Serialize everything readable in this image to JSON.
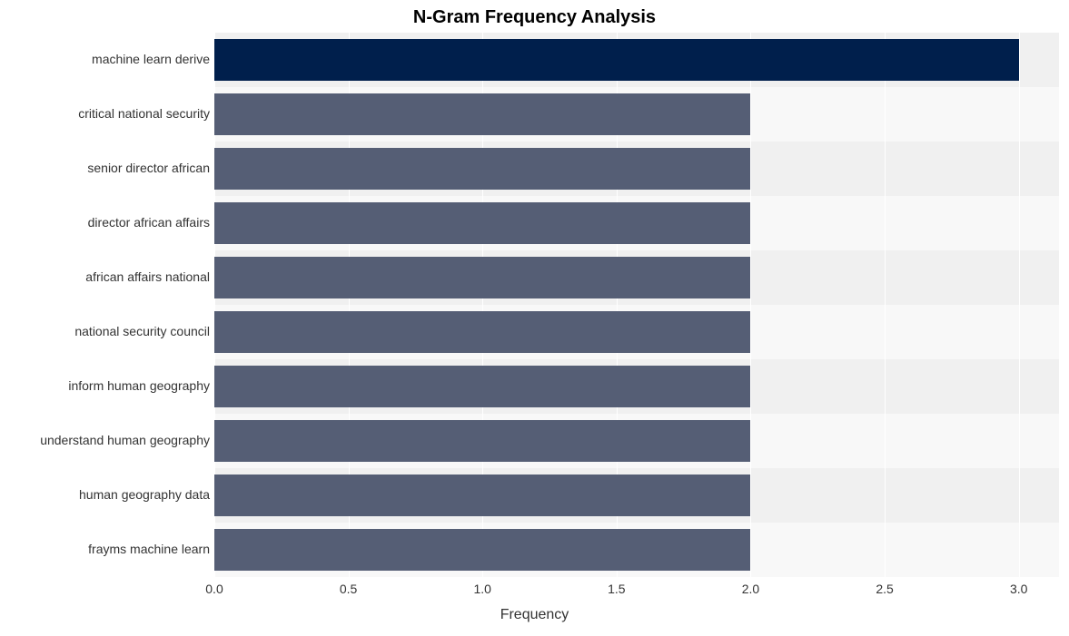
{
  "chart": {
    "type": "bar-horizontal",
    "title": "N-Gram Frequency Analysis",
    "title_fontsize": 20,
    "title_fontweight": "bold",
    "xlabel": "Frequency",
    "xlabel_fontsize": 16,
    "background_color": "#ffffff",
    "plot_background_light": "#f8f8f8",
    "plot_background_dark": "#f0f0f0",
    "grid_color": "#ffffff",
    "label_fontsize": 14,
    "xlim": [
      0.0,
      3.15
    ],
    "xticks": [
      {
        "pos": 0.0,
        "label": "0.0"
      },
      {
        "pos": 0.5,
        "label": "0.5"
      },
      {
        "pos": 1.0,
        "label": "1.0"
      },
      {
        "pos": 1.5,
        "label": "1.5"
      },
      {
        "pos": 2.0,
        "label": "2.0"
      },
      {
        "pos": 2.5,
        "label": "2.5"
      },
      {
        "pos": 3.0,
        "label": "3.0"
      }
    ],
    "bar_height_ratio": 0.76,
    "categories": [
      "machine learn derive",
      "critical national security",
      "senior director african",
      "director african affairs",
      "african affairs national",
      "national security council",
      "inform human geography",
      "understand human geography",
      "human geography data",
      "frayms machine learn"
    ],
    "values": [
      3,
      2,
      2,
      2,
      2,
      2,
      2,
      2,
      2,
      2
    ],
    "bar_colors": [
      "#001f4c",
      "#555e75",
      "#555e75",
      "#555e75",
      "#555e75",
      "#555e75",
      "#555e75",
      "#555e75",
      "#555e75",
      "#555e75"
    ]
  }
}
